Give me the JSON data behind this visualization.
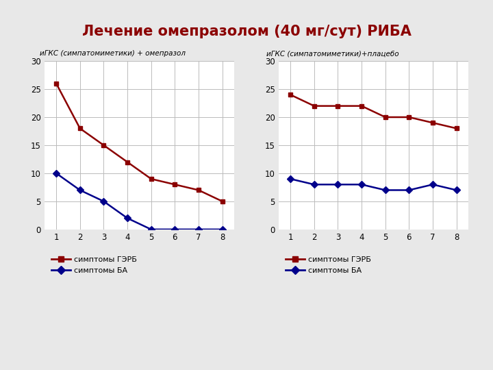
{
  "title": "Лечение омепразолом (40 мг/сут) РИБА",
  "title_color": "#8B0000",
  "subtitle_left": "иГКС (симпатомиметики) + омепразол",
  "subtitle_right": "иГКС (симпатомиметики)+плацебо",
  "subtitle_color": "#000000",
  "x_values": [
    1,
    2,
    3,
    4,
    5,
    6,
    7,
    8
  ],
  "left_gerb": [
    26,
    18,
    15,
    12,
    9,
    8,
    7,
    5
  ],
  "left_ba": [
    10,
    7,
    5,
    2,
    0,
    0,
    0,
    0
  ],
  "right_gerb": [
    24,
    22,
    22,
    22,
    20,
    20,
    19,
    18
  ],
  "right_ba": [
    9,
    8,
    8,
    8,
    7,
    7,
    8,
    7
  ],
  "gerb_color": "#8B0000",
  "ba_color": "#00008B",
  "ylim": [
    0,
    30
  ],
  "yticks": [
    0,
    5,
    10,
    15,
    20,
    25,
    30
  ],
  "background_color": "#e8e8e8",
  "plot_bg": "#ffffff",
  "top_strip_color": "#4a4a4a",
  "legend_gerb": "симптомы ГЭРБ",
  "legend_ba": "симптомы БА",
  "legend_ba_right": "симптомы БА"
}
